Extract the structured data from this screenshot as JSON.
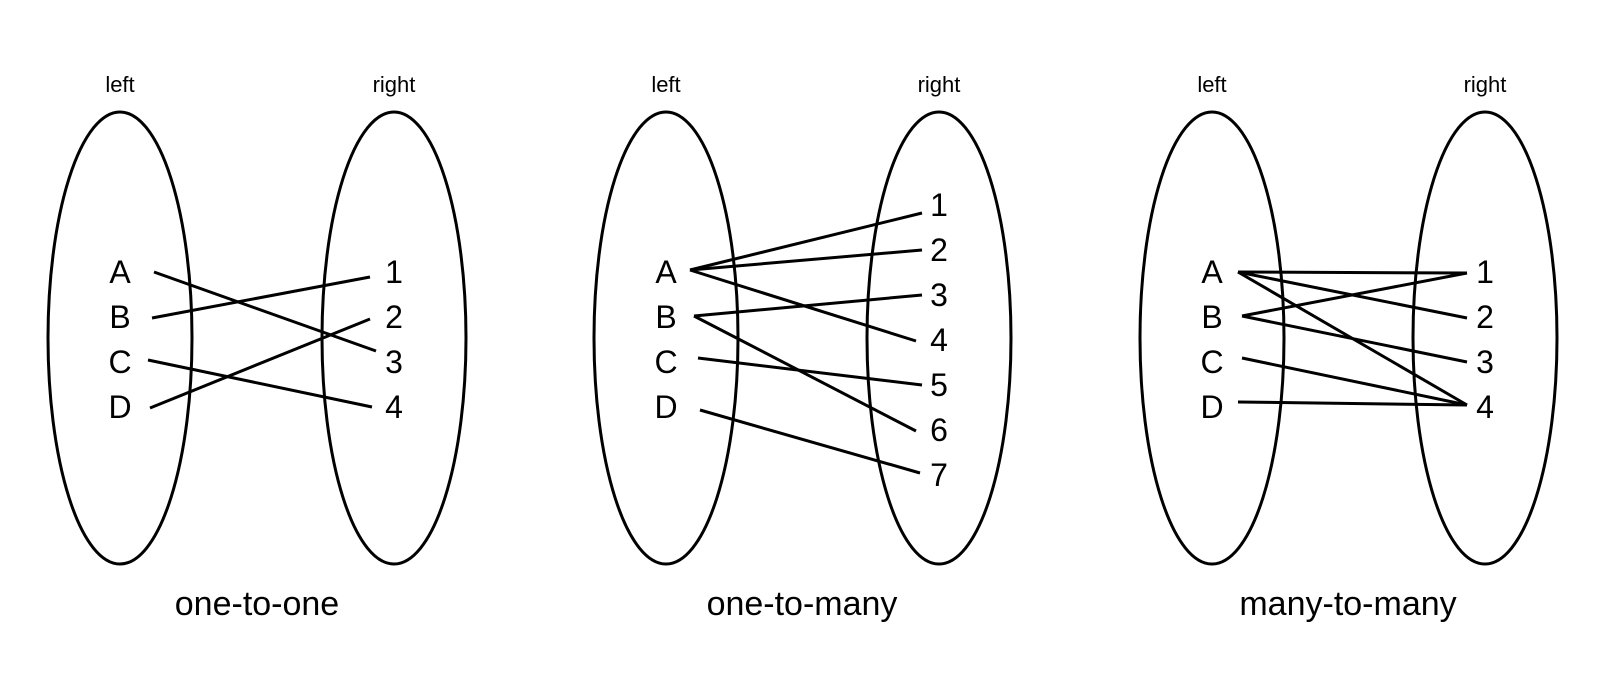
{
  "diagrams": [
    {
      "caption": "one-to-one",
      "left_label": "left",
      "right_label": "right",
      "left_items": [
        "A",
        "B",
        "C",
        "D"
      ],
      "right_items": [
        "1",
        "2",
        "3",
        "4"
      ],
      "edges": [
        [
          "A",
          "3"
        ],
        [
          "B",
          "1"
        ],
        [
          "C",
          "4"
        ],
        [
          "D",
          "2"
        ]
      ]
    },
    {
      "caption": "one-to-many",
      "left_label": "left",
      "right_label": "right",
      "left_items": [
        "A",
        "B",
        "C",
        "D"
      ],
      "right_items": [
        "1",
        "2",
        "3",
        "4",
        "5",
        "6",
        "7"
      ],
      "edges": [
        [
          "A",
          "1"
        ],
        [
          "A",
          "2"
        ],
        [
          "A",
          "4"
        ],
        [
          "B",
          "3"
        ],
        [
          "B",
          "6"
        ],
        [
          "C",
          "5"
        ],
        [
          "D",
          "7"
        ]
      ]
    },
    {
      "caption": "many-to-many",
      "left_label": "left",
      "right_label": "right",
      "left_items": [
        "A",
        "B",
        "C",
        "D"
      ],
      "right_items": [
        "1",
        "2",
        "3",
        "4"
      ],
      "edges": [
        [
          "A",
          "1"
        ],
        [
          "A",
          "2"
        ],
        [
          "A",
          "4"
        ],
        [
          "B",
          "1"
        ],
        [
          "B",
          "3"
        ],
        [
          "C",
          "4"
        ],
        [
          "D",
          "4"
        ]
      ]
    }
  ]
}
